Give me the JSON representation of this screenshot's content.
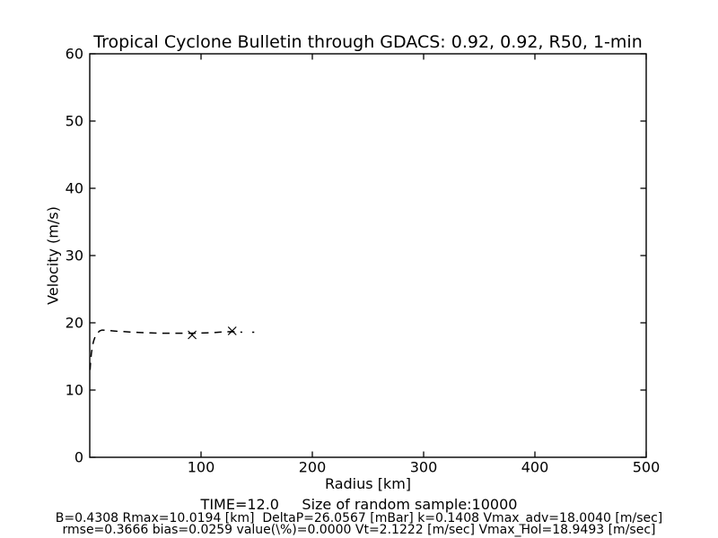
{
  "figure": {
    "title": "Tropical Cyclone Bulletin through GDACS: 0.92, 0.92, R50, 1-min",
    "footer_line1": "TIME=12.0     Size of random sample:10000",
    "footer_line2": "B=0.4308 Rmax=10.0194 [km]  DeltaP=26.0567 [mBar] k=0.1408 Vmax_adv=18.0040 [m/sec]",
    "footer_line3": "rmse=0.3666 bias=0.0259 value(\\%)=0.0000 Vt=2.1222 [m/sec] Vmax_Hol=18.9493 [m/sec]"
  },
  "chart_data": {
    "type": "line",
    "title": "Tropical Cyclone Bulletin through GDACS: 0.92, 0.92, R50, 1-min",
    "xlabel": "Radius [km]",
    "ylabel": "Velocity (m/s)",
    "xlim": [
      0,
      500
    ],
    "ylim": [
      0,
      60
    ],
    "xticks": [
      100,
      200,
      300,
      400,
      500
    ],
    "yticks": [
      0,
      10,
      20,
      30,
      40,
      50,
      60
    ],
    "grid": false,
    "legend": null,
    "line_color": "#000000",
    "series": [
      {
        "name": "holland-wind-profile",
        "style": "dashed",
        "points": [
          [
            0.3,
            13.0
          ],
          [
            0.8,
            14.3
          ],
          [
            1.5,
            15.5
          ],
          [
            2.5,
            16.6
          ],
          [
            3.5,
            17.3
          ],
          [
            5,
            18.0
          ],
          [
            7,
            18.5
          ],
          [
            9,
            18.8
          ],
          [
            11,
            18.92
          ],
          [
            14,
            18.9
          ],
          [
            18,
            18.85
          ],
          [
            24,
            18.75
          ],
          [
            30,
            18.7
          ],
          [
            38,
            18.6
          ],
          [
            46,
            18.55
          ],
          [
            55,
            18.5
          ],
          [
            65,
            18.45
          ],
          [
            75,
            18.45
          ],
          [
            85,
            18.45
          ],
          [
            95,
            18.45
          ],
          [
            105,
            18.5
          ],
          [
            112,
            18.55
          ],
          [
            120,
            18.65
          ],
          [
            128,
            18.68
          ],
          [
            133,
            18.65
          ],
          [
            137,
            18.6
          ]
        ]
      },
      {
        "name": "observation-markers",
        "style": "x",
        "points": [
          [
            92,
            18.2
          ],
          [
            128,
            18.8
          ]
        ]
      },
      {
        "name": "profile-end-dash",
        "style": "solid",
        "points": [
          [
            146,
            18.6
          ],
          [
            147.8,
            18.6
          ]
        ]
      }
    ]
  }
}
